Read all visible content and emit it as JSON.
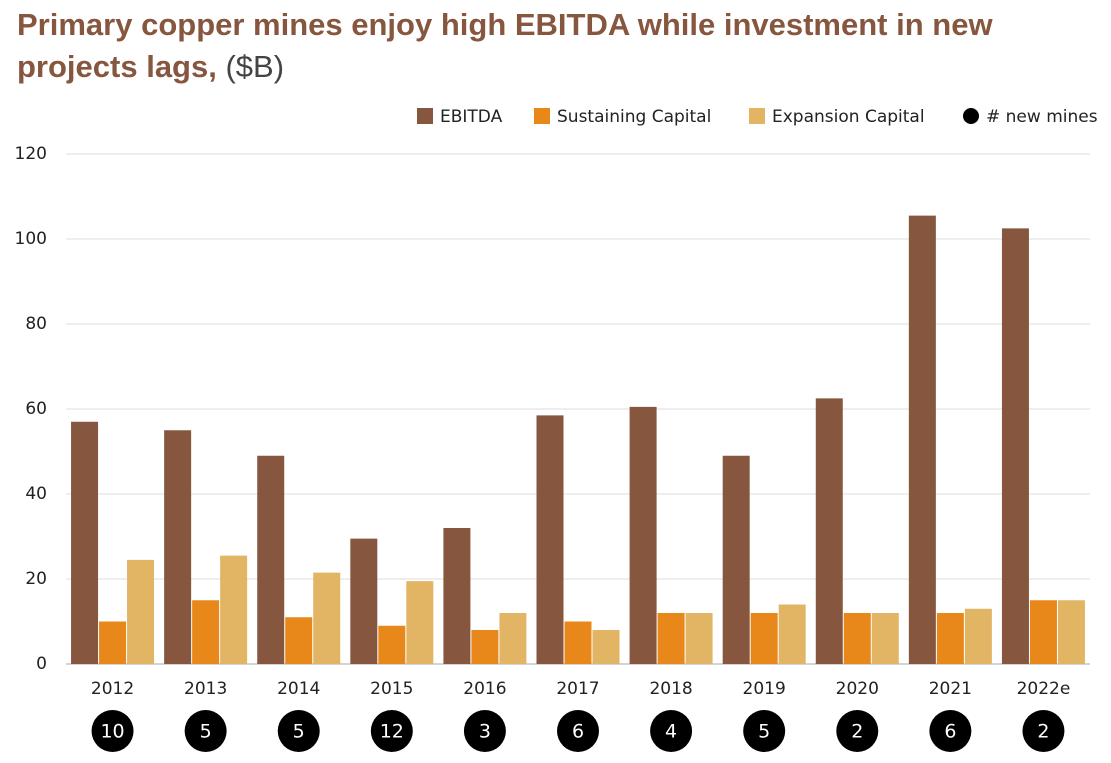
{
  "chart_data": {
    "type": "bar",
    "title": "Primary copper mines enjoy high EBITDA while investment in new projects lags,",
    "unit": "($B)",
    "categories": [
      "2012",
      "2013",
      "2014",
      "2015",
      "2016",
      "2017",
      "2018",
      "2019",
      "2020",
      "2021",
      "2022e"
    ],
    "series": [
      {
        "name": "EBITDA",
        "color": "#87563f",
        "values": [
          57,
          55,
          49,
          29.5,
          32,
          58.5,
          60.5,
          49,
          62.5,
          105.5,
          102.5
        ]
      },
      {
        "name": "Sustaining Capital",
        "color": "#e8881a",
        "values": [
          10,
          15,
          11,
          9,
          8,
          10,
          12,
          12,
          12,
          12,
          15
        ]
      },
      {
        "name": "Expansion Capital",
        "color": "#e2b565",
        "values": [
          24.5,
          25.5,
          21.5,
          19.5,
          12,
          8,
          12,
          14,
          12,
          13,
          15
        ]
      },
      {
        "name": "# new mines",
        "color": "#000000",
        "values": [
          10,
          5,
          5,
          12,
          3,
          6,
          4,
          5,
          2,
          6,
          2
        ]
      }
    ],
    "ylim": [
      0,
      120
    ],
    "yticks": [
      0,
      20,
      40,
      60,
      80,
      100,
      120
    ],
    "grid": true
  }
}
